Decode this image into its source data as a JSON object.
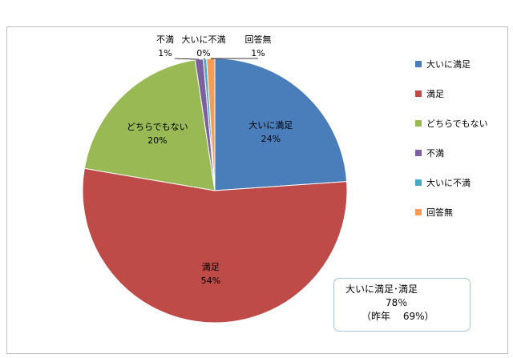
{
  "chart_data": {
    "type": "pie",
    "title": "",
    "slices": [
      {
        "name": "大いに満足",
        "value": 24,
        "label": "24%",
        "color": "#4a7ebb"
      },
      {
        "name": "満足",
        "value": 54,
        "label": "54%",
        "color": "#be4b48"
      },
      {
        "name": "どちらでもない",
        "value": 20,
        "label": "20%",
        "color": "#98b954"
      },
      {
        "name": "不満",
        "value": 1,
        "label": "1%",
        "color": "#7d60a0"
      },
      {
        "name": "大いに不満",
        "value": 0,
        "label": "0%",
        "color": "#46aac5"
      },
      {
        "name": "回答無",
        "value": 1,
        "label": "1%",
        "color": "#f59d56"
      }
    ],
    "legend_position": "right",
    "annotation": {
      "line1": "大いに満足･満足",
      "line2": "78％",
      "line3": "（昨年　 69%）"
    }
  }
}
